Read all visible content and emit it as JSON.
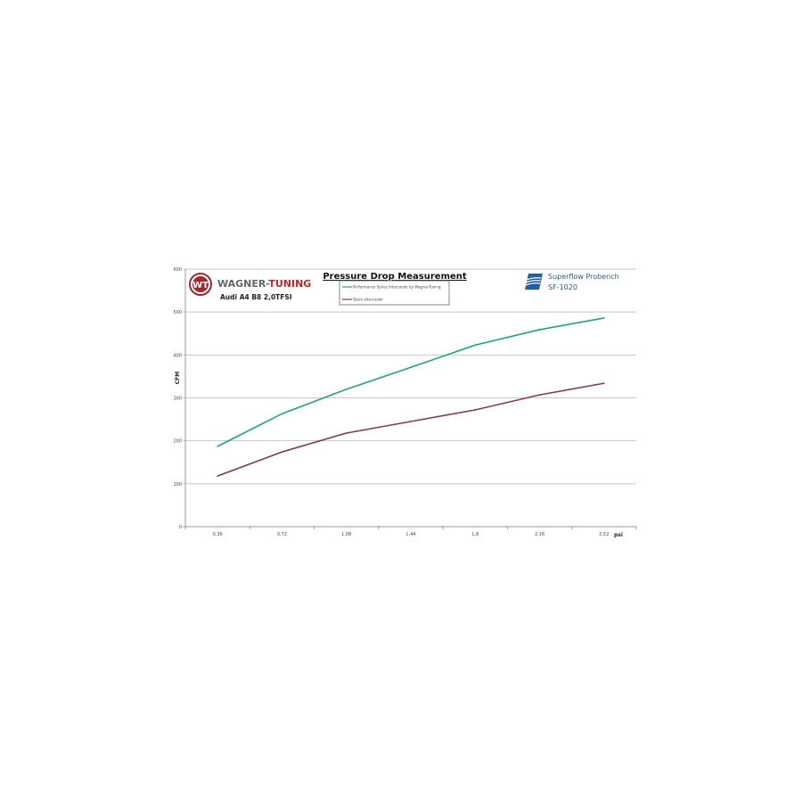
{
  "chart_data": {
    "type": "line",
    "title": "Pressure Drop Measurement",
    "xlabel": "psi",
    "ylabel": "CFM",
    "categories": [
      "0,36",
      "0,72",
      "1,08",
      "1,44",
      "1,8",
      "2,16",
      "2,52"
    ],
    "ylim": [
      0,
      600
    ],
    "yticks": [
      "0",
      "100",
      "200",
      "300",
      "400",
      "500",
      "600"
    ],
    "grid": true,
    "legend_position": "top-center",
    "series": [
      {
        "name": "Performance Series Intercooler by Wagner-Tuning",
        "color": "#1aab6a",
        "values": [
          187,
          263,
          320,
          371,
          423,
          459,
          486
        ]
      },
      {
        "name": "Stock Intercooler",
        "color": "#8b3a3f",
        "values": [
          118,
          174,
          218,
          245,
          272,
          307,
          334
        ]
      }
    ]
  },
  "branding": {
    "logo_left": {
      "text_a": "WAGNER-",
      "text_b": "TUNING",
      "monogram": "WT"
    },
    "car": "Audi A4 B8 2,0TFSI",
    "logo_right": {
      "line1": "Superflow Probench",
      "line2": "SF-1020"
    }
  }
}
